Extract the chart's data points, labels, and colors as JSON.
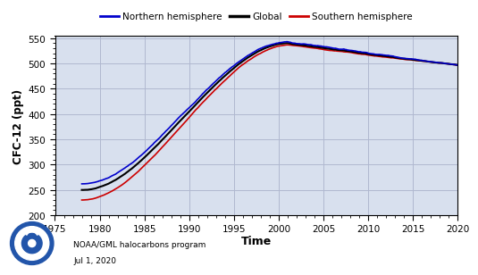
{
  "xlabel": "Time",
  "ylabel": "CFC-12 (ppt)",
  "xlim": [
    1975,
    2020
  ],
  "ylim": [
    200,
    555
  ],
  "yticks": [
    200,
    250,
    300,
    350,
    400,
    450,
    500,
    550
  ],
  "xticks": [
    1975,
    1980,
    1985,
    1990,
    1995,
    2000,
    2005,
    2010,
    2015,
    2020
  ],
  "legend_labels": [
    "Northern hemisphere",
    "Global",
    "Southern hemisphere"
  ],
  "legend_colors": [
    "#0000cc",
    "#000000",
    "#cc0000"
  ],
  "grid_color": "#b0b8d0",
  "background_color": "#d8e0ee",
  "note_line1": "NOAA/GML halocarbons program",
  "note_line2": "Jul 1, 2020"
}
